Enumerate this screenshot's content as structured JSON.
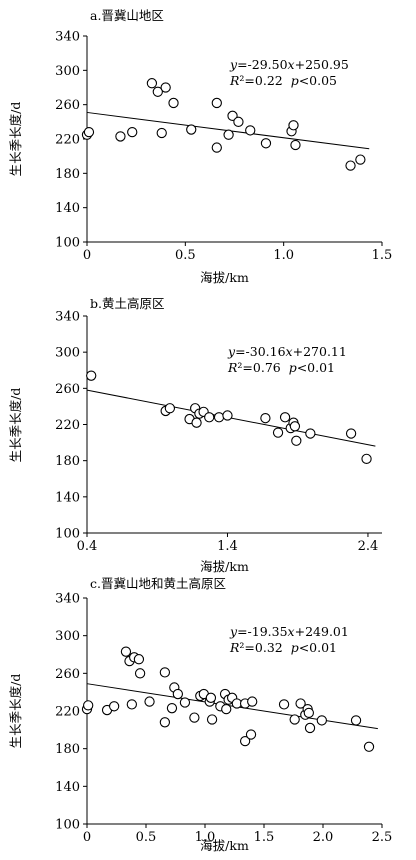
{
  "chart_data": [
    {
      "type": "scatter",
      "title": "a.晋冀山地区",
      "xlabel": "海拔/km",
      "ylabel": "生长季长度/d",
      "xlim": [
        0,
        1.5
      ],
      "ylim": [
        100,
        340
      ],
      "xticks": [
        0,
        0.5,
        1.0,
        1.5
      ],
      "xtick_labels": [
        "0",
        "0.5",
        "1.0",
        "1.5"
      ],
      "yticks": [
        100,
        140,
        180,
        220,
        260,
        300,
        340
      ],
      "ytick_labels": [
        "100",
        "140",
        "180",
        "220",
        "260",
        "300",
        "340"
      ],
      "equation": {
        "line1": "y=-29.50x+250.95",
        "line2": "R²=0.22  p<0.05"
      },
      "fit": {
        "slope": -29.5,
        "intercept": 250.95
      },
      "points": [
        [
          0.0,
          225
        ],
        [
          0.01,
          228
        ],
        [
          0.17,
          223
        ],
        [
          0.23,
          228
        ],
        [
          0.33,
          285
        ],
        [
          0.36,
          275
        ],
        [
          0.38,
          227
        ],
        [
          0.4,
          280
        ],
        [
          0.44,
          262
        ],
        [
          0.53,
          231
        ],
        [
          0.66,
          210
        ],
        [
          0.66,
          262
        ],
        [
          0.72,
          225
        ],
        [
          0.74,
          247
        ],
        [
          0.77,
          240
        ],
        [
          0.83,
          230
        ],
        [
          0.91,
          215
        ],
        [
          1.04,
          229
        ],
        [
          1.05,
          236
        ],
        [
          1.06,
          213
        ],
        [
          1.34,
          189
        ],
        [
          1.39,
          196
        ]
      ]
    },
    {
      "type": "scatter",
      "title": "b.黄土高原区",
      "xlabel": "海拔/km",
      "ylabel": "生长季长度/d",
      "xlim": [
        0.4,
        2.5
      ],
      "ylim": [
        100,
        340
      ],
      "xticks": [
        0.4,
        1.4,
        2.4
      ],
      "xtick_labels": [
        "0.4",
        "1.4",
        "2.4"
      ],
      "yticks": [
        100,
        140,
        180,
        220,
        260,
        300,
        340
      ],
      "ytick_labels": [
        "100",
        "140",
        "180",
        "220",
        "260",
        "300",
        "340"
      ],
      "equation": {
        "line1": "y=-30.16x+270.11",
        "line2": "R²=0.76  p<0.01"
      },
      "fit": {
        "slope": -30.16,
        "intercept": 270.11
      },
      "points": [
        [
          0.43,
          274
        ],
        [
          0.96,
          235
        ],
        [
          0.99,
          238
        ],
        [
          1.13,
          226
        ],
        [
          1.17,
          238
        ],
        [
          1.18,
          222
        ],
        [
          1.2,
          232
        ],
        [
          1.23,
          234
        ],
        [
          1.27,
          228
        ],
        [
          1.34,
          228
        ],
        [
          1.4,
          230
        ],
        [
          1.67,
          227
        ],
        [
          1.76,
          211
        ],
        [
          1.81,
          228
        ],
        [
          1.85,
          216
        ],
        [
          1.87,
          222
        ],
        [
          1.88,
          218
        ],
        [
          1.89,
          202
        ],
        [
          1.99,
          210
        ],
        [
          2.28,
          210
        ],
        [
          2.39,
          182
        ]
      ]
    },
    {
      "type": "scatter",
      "title": "c.晋冀山地和黄土高原区",
      "xlabel": "海拔/km",
      "ylabel": "生长季长度/d",
      "xlim": [
        0,
        2.5
      ],
      "ylim": [
        100,
        340
      ],
      "xticks": [
        0,
        0.5,
        1.0,
        1.5,
        2.0,
        2.5
      ],
      "xtick_labels": [
        "0",
        "0.5",
        "1.0",
        "1.5",
        "2.0",
        "2.5"
      ],
      "yticks": [
        100,
        140,
        180,
        220,
        260,
        300,
        340
      ],
      "ytick_labels": [
        "100",
        "140",
        "180",
        "220",
        "260",
        "300",
        "340"
      ],
      "equation": {
        "line1": "y=-19.35x+249.01",
        "line2": "R²=0.32  p<0.01"
      },
      "fit": {
        "slope": -19.35,
        "intercept": 249.01
      },
      "points": [
        [
          0.0,
          222
        ],
        [
          0.01,
          226
        ],
        [
          0.17,
          221
        ],
        [
          0.23,
          225
        ],
        [
          0.33,
          283
        ],
        [
          0.36,
          273
        ],
        [
          0.38,
          227
        ],
        [
          0.4,
          277
        ],
        [
          0.44,
          275
        ],
        [
          0.45,
          260
        ],
        [
          0.53,
          230
        ],
        [
          0.66,
          261
        ],
        [
          0.66,
          208
        ],
        [
          0.72,
          223
        ],
        [
          0.74,
          245
        ],
        [
          0.77,
          238
        ],
        [
          0.83,
          229
        ],
        [
          0.91,
          213
        ],
        [
          0.96,
          236
        ],
        [
          0.99,
          238
        ],
        [
          1.04,
          230
        ],
        [
          1.05,
          234
        ],
        [
          1.06,
          211
        ],
        [
          1.13,
          225
        ],
        [
          1.17,
          238
        ],
        [
          1.18,
          222
        ],
        [
          1.2,
          232
        ],
        [
          1.23,
          234
        ],
        [
          1.27,
          228
        ],
        [
          1.34,
          188
        ],
        [
          1.34,
          228
        ],
        [
          1.39,
          195
        ],
        [
          1.4,
          230
        ],
        [
          1.67,
          227
        ],
        [
          1.76,
          211
        ],
        [
          1.81,
          228
        ],
        [
          1.85,
          216
        ],
        [
          1.87,
          222
        ],
        [
          1.88,
          218
        ],
        [
          1.89,
          202
        ],
        [
          1.99,
          210
        ],
        [
          2.28,
          210
        ],
        [
          2.39,
          182
        ]
      ]
    }
  ]
}
